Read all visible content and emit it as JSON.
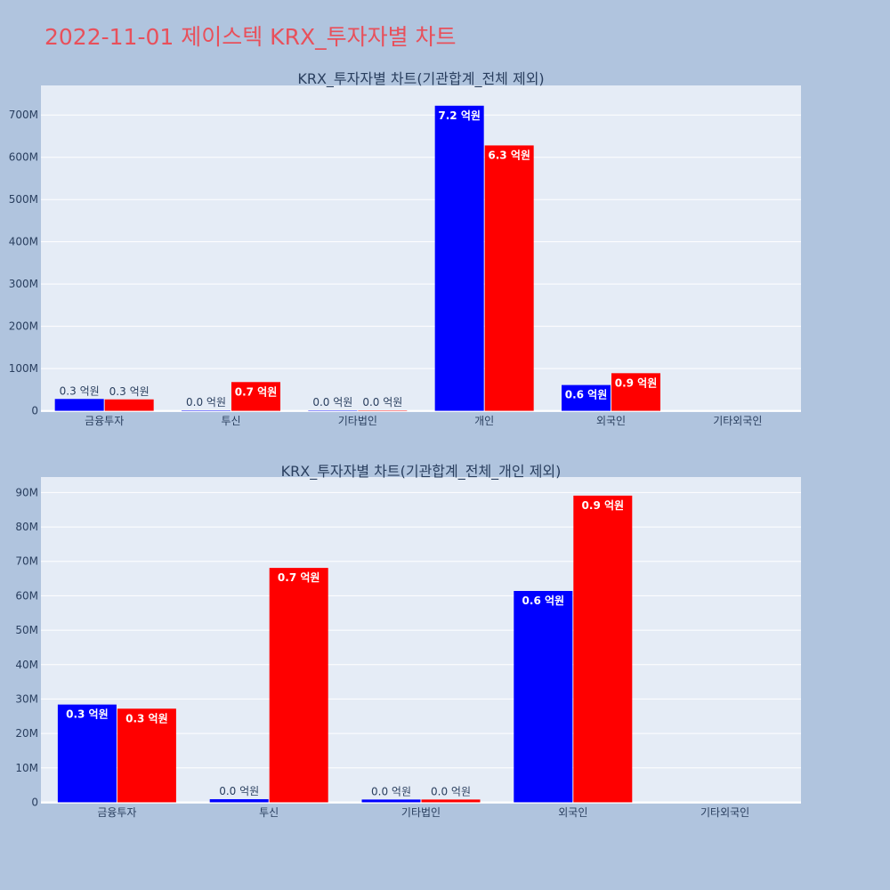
{
  "page_title": "2022-11-01 제이스텍 KRX_투자자별 차트",
  "colors": {
    "buy": "#0000ff",
    "sell": "#ff0000",
    "plot_bg": "#e5ecf6",
    "page_bg": "#b0c4de",
    "title": "#e8505b"
  },
  "chart_data": [
    {
      "type": "bar",
      "title": "KRX_투자자별 차트(기관합계_전체 제외)",
      "categories": [
        "금융투자",
        "투신",
        "기타법인",
        "개인",
        "외국인",
        "기타외국인"
      ],
      "series": [
        {
          "color": "#0000ff",
          "values": [
            28000000,
            1000000,
            900000,
            722000000,
            61000000,
            0
          ],
          "labels": [
            "0.3 억원",
            "0.0 억원",
            "0.0 억원",
            "7.2 억원",
            "0.6 억원",
            ""
          ]
        },
        {
          "color": "#ff0000",
          "values": [
            27000000,
            68000000,
            900000,
            628000000,
            89000000,
            0
          ],
          "labels": [
            "0.3 억원",
            "0.7 억원",
            "0.0 억원",
            "6.3 억원",
            "0.9 억원",
            ""
          ]
        }
      ],
      "yticks": [
        0,
        100000000,
        200000000,
        300000000,
        400000000,
        500000000,
        600000000,
        700000000
      ],
      "ytick_labels": [
        "0",
        "100M",
        "200M",
        "300M",
        "400M",
        "500M",
        "600M",
        "700M"
      ],
      "ylim": [
        -3000000,
        770000000
      ],
      "grid": true
    },
    {
      "type": "bar",
      "title": "KRX_투자자별 차트(기관합계_전체_개인 제외)",
      "categories": [
        "금융투자",
        "투신",
        "기타법인",
        "외국인",
        "기타외국인"
      ],
      "series": [
        {
          "color": "#0000ff",
          "values": [
            28400000,
            900000,
            800000,
            61400000,
            0
          ],
          "labels": [
            "0.3 억원",
            "0.0 억원",
            "0.0 억원",
            "0.6 억원",
            ""
          ]
        },
        {
          "color": "#ff0000",
          "values": [
            27200000,
            68100000,
            800000,
            89100000,
            0
          ],
          "labels": [
            "0.3 억원",
            "0.7 억원",
            "0.0 억원",
            "0.9 억원",
            ""
          ]
        }
      ],
      "yticks": [
        0,
        10000000,
        20000000,
        30000000,
        40000000,
        50000000,
        60000000,
        70000000,
        80000000,
        90000000
      ],
      "ytick_labels": [
        "0",
        "10M",
        "20M",
        "30M",
        "40M",
        "50M",
        "60M",
        "70M",
        "80M",
        "90M"
      ],
      "ylim": [
        -400000,
        94500000
      ],
      "grid": true
    }
  ]
}
